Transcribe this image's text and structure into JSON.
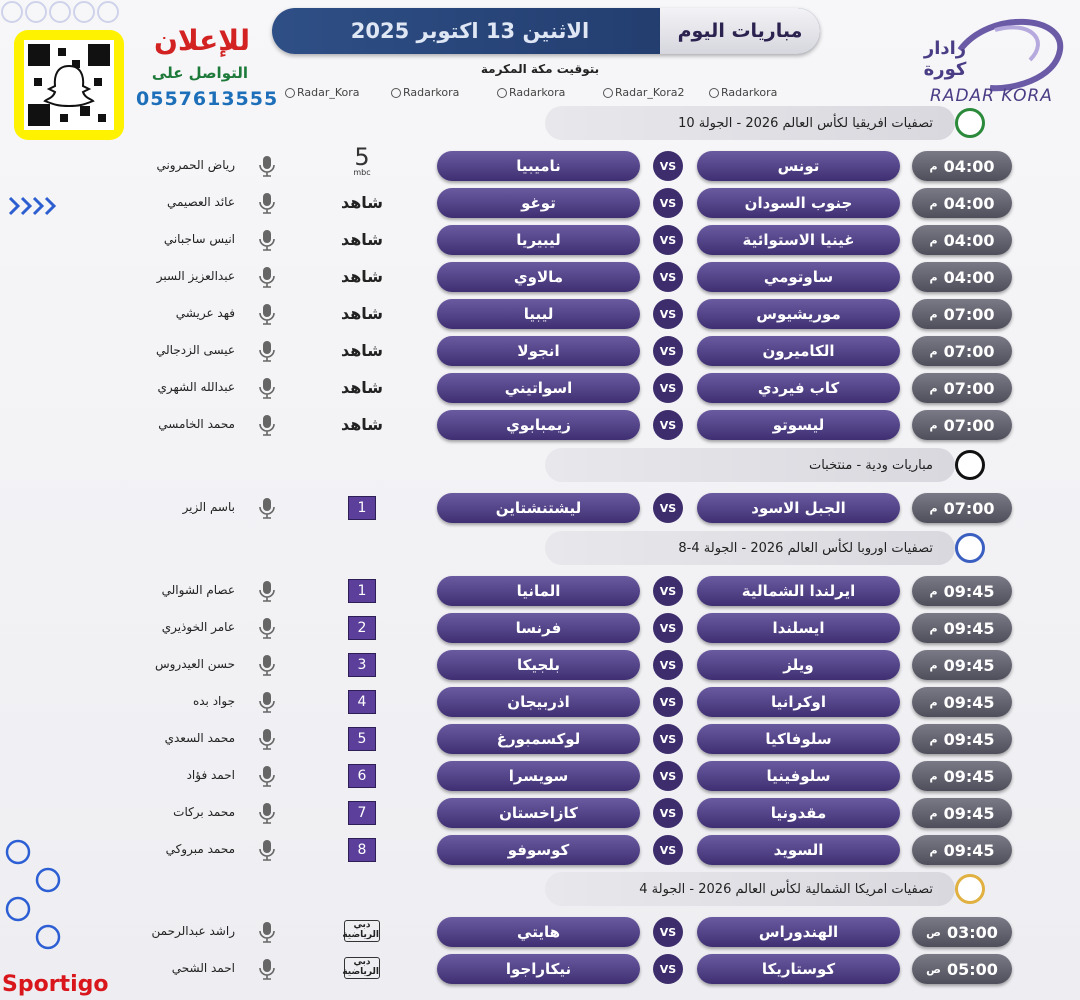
{
  "header": {
    "title": "مباريات اليوم",
    "date": "الاثنين 13 اكتوبر 2025",
    "timezone": "بتوقيت مكة المكرمة",
    "socials": [
      "Radar_Kora",
      "Radarkora",
      "Radarkora",
      "Radar_Kora2",
      "Radarkora"
    ]
  },
  "logo": {
    "arabic": "رادار كورة",
    "latin": "RADAR KORA"
  },
  "ad": {
    "title": "للإعلان",
    "contact": "التواصل على",
    "phone": "0557613555"
  },
  "sections": [
    {
      "title": "تصفيات افريقيا لكأس العالم 2026 - الجولة 10",
      "matches": [
        {
          "time": "04:00",
          "period": "م",
          "home": "تونس",
          "vs": "VS",
          "away": "ناميبيا",
          "channel": "5",
          "channel_sub": "mbc",
          "commentator": "رياض الحمروني"
        },
        {
          "time": "04:00",
          "period": "م",
          "home": "جنوب السودان",
          "vs": "VS",
          "away": "توغو",
          "channel": "شاهد",
          "commentator": "عائد العصيمي"
        },
        {
          "time": "04:00",
          "period": "م",
          "home": "غينيا الاستوائية",
          "vs": "VS",
          "away": "ليبيريا",
          "channel": "شاهد",
          "commentator": "انيس ساجباني"
        },
        {
          "time": "04:00",
          "period": "م",
          "home": "ساوتومي",
          "vs": "VS",
          "away": "مالاوي",
          "channel": "شاهد",
          "commentator": "عبدالعزيز السبر"
        },
        {
          "time": "07:00",
          "period": "م",
          "home": "موريشيوس",
          "vs": "VS",
          "away": "ليبيا",
          "channel": "شاهد",
          "commentator": "فهد عريشي"
        },
        {
          "time": "07:00",
          "period": "م",
          "home": "الكاميرون",
          "vs": "VS",
          "away": "انجولا",
          "channel": "شاهد",
          "commentator": "عيسى الزدجالي"
        },
        {
          "time": "07:00",
          "period": "م",
          "home": "كاب فيردي",
          "vs": "VS",
          "away": "اسواتيني",
          "channel": "شاهد",
          "commentator": "عبدالله الشهري"
        },
        {
          "time": "07:00",
          "period": "م",
          "home": "ليسوتو",
          "vs": "VS",
          "away": "زيمبابوي",
          "channel": "شاهد",
          "commentator": "محمد الخامسي"
        }
      ]
    },
    {
      "title": "مباريات ودية - منتخبات",
      "matches": [
        {
          "time": "07:00",
          "period": "م",
          "home": "الجبل الاسود",
          "vs": "VS",
          "away": "ليشتنشتاين",
          "channel": "1",
          "commentator": "باسم الزير"
        }
      ]
    },
    {
      "title": "تصفيات اوروبا لكأس العالم 2026 - الجولة 4-8",
      "matches": [
        {
          "time": "09:45",
          "period": "م",
          "home": "ايرلندا الشمالية",
          "vs": "VS",
          "away": "المانيا",
          "channel": "1",
          "commentator": "عصام الشوالي"
        },
        {
          "time": "09:45",
          "period": "م",
          "home": "ايسلندا",
          "vs": "VS",
          "away": "فرنسا",
          "channel": "2",
          "commentator": "عامر الخوذيري"
        },
        {
          "time": "09:45",
          "period": "م",
          "home": "ويلز",
          "vs": "VS",
          "away": "بلجيكا",
          "channel": "3",
          "commentator": "حسن العيدروس"
        },
        {
          "time": "09:45",
          "period": "م",
          "home": "اوكرانيا",
          "vs": "VS",
          "away": "اذربيجان",
          "channel": "4",
          "commentator": "جواد بده"
        },
        {
          "time": "09:45",
          "period": "م",
          "home": "سلوفاكيا",
          "vs": "VS",
          "away": "لوكسمبورغ",
          "channel": "5",
          "commentator": "محمد السعدي"
        },
        {
          "time": "09:45",
          "period": "م",
          "home": "سلوفينيا",
          "vs": "VS",
          "away": "سويسرا",
          "channel": "6",
          "commentator": "احمد فؤاد"
        },
        {
          "time": "09:45",
          "period": "م",
          "home": "مقدونيا",
          "vs": "VS",
          "away": "كازاخستان",
          "channel": "7",
          "commentator": "محمد بركات"
        },
        {
          "time": "09:45",
          "period": "م",
          "home": "السويد",
          "vs": "VS",
          "away": "كوسوفو",
          "channel": "8",
          "commentator": "محمد مبروكي"
        }
      ]
    },
    {
      "title": "تصفيات امريكا الشمالية لكأس العالم 2026 - الجولة 4",
      "matches": [
        {
          "time": "03:00",
          "period": "ص",
          "home": "الهندوراس",
          "vs": "VS",
          "away": "هايتي",
          "channel": "دبي الرياضية",
          "commentator": "راشد عبدالرحمن"
        },
        {
          "time": "05:00",
          "period": "ص",
          "home": "كوستاريكا",
          "vs": "VS",
          "away": "نيكاراجوا",
          "channel": "دبي الرياضية",
          "commentator": "احمد الشحي"
        }
      ]
    }
  ],
  "footer": "Sportigo"
}
